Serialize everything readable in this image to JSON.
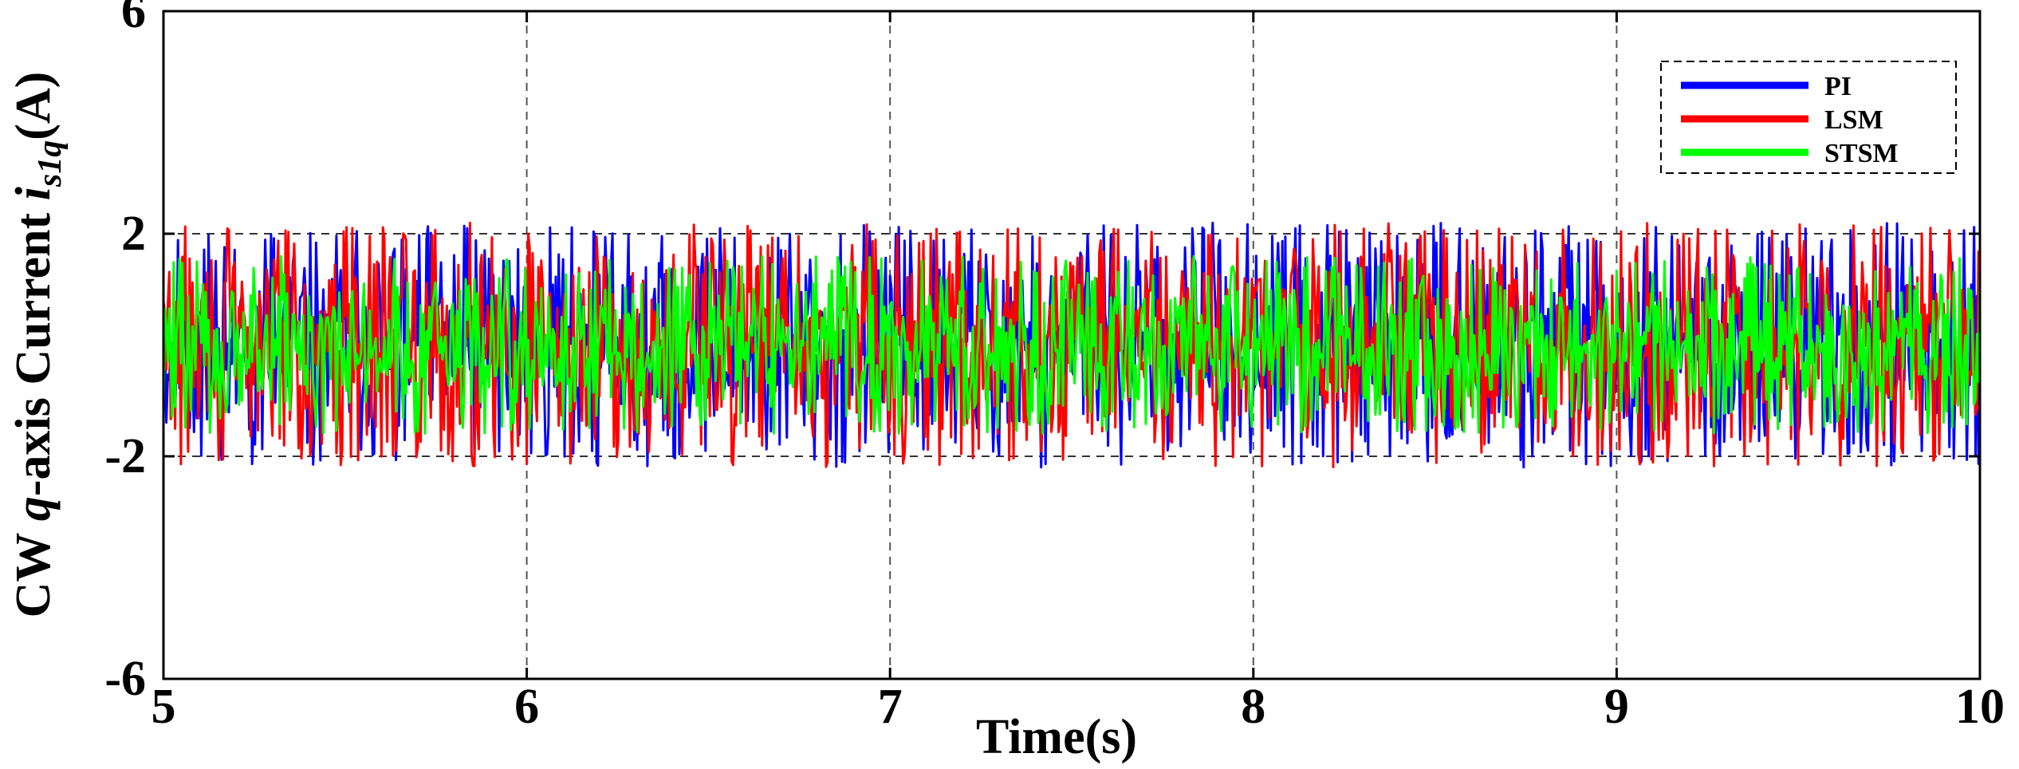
{
  "chart_data": {
    "type": "line",
    "xlabel": "Time(s)",
    "ylabel": {
      "prefix": "CW ",
      "q": "q",
      "middle": "-axis Current ",
      "i": "i",
      "sub": "s1q",
      "suffix": "(A)"
    },
    "xlim": [
      5,
      10
    ],
    "ylim": [
      -6,
      6
    ],
    "x_ticks": [
      "5",
      "6",
      "7",
      "8",
      "9",
      "10"
    ],
    "y_ticks": [
      "6",
      "2",
      "-2",
      "-6"
    ],
    "grid": true,
    "reference_lines": [
      2,
      -2
    ],
    "legend_position": "top-right",
    "sample_step": 0.004,
    "series": [
      {
        "name": "PI",
        "color": "#0000ff",
        "amplitude": 2.2,
        "seed": 11
      },
      {
        "name": "LSM",
        "color": "#ff0000",
        "amplitude": 2.2,
        "seed": 29
      },
      {
        "name": "STSM",
        "color": "#00ff00",
        "amplitude": 1.6,
        "seed": 47
      }
    ]
  }
}
